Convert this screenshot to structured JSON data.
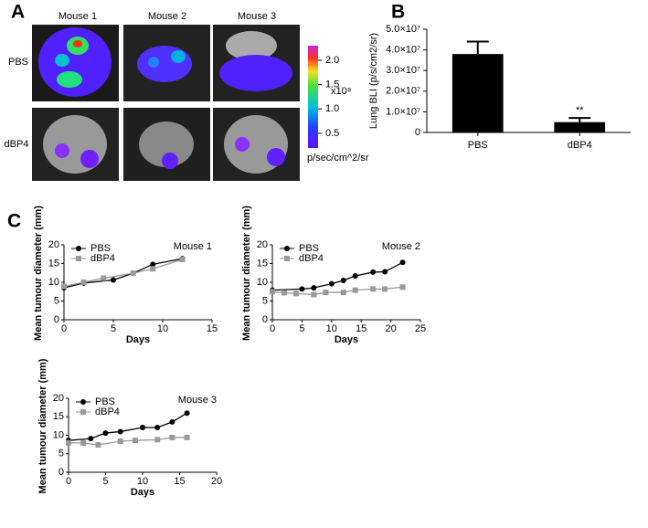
{
  "panel_labels": [
    "A",
    "B",
    "C"
  ],
  "panel_a": {
    "columns": [
      "Mouse 1",
      "Mouse 2",
      "Mouse 3"
    ],
    "rows": [
      "PBS",
      "dBP4"
    ],
    "colorbar": {
      "clim": [
        0.2,
        2.3
      ],
      "ticks": [
        0.5,
        {
          "value": 1,
          "label": "1.0"
        },
        1.5,
        {
          "value": 2,
          "label": "2.0"
        }
      ],
      "scale_label": "x10⁸",
      "unit": "p/sec/cm^2/sr"
    }
  },
  "chart_data": [
    {
      "type": "bar",
      "ylabel": "Lung BLI (p/s/cm2/sr)",
      "categories": [
        "PBS",
        "dBP4"
      ],
      "values": [
        38000000,
        5000000
      ],
      "errors": [
        6000000,
        2000000
      ],
      "color": "#000000",
      "ylim": [
        0,
        50000000
      ],
      "yticks": [
        0,
        {
          "value": 10000000,
          "label": "1.0×10⁷"
        },
        {
          "value": 20000000,
          "label": "2.0×10⁷"
        },
        {
          "value": 30000000,
          "label": "3.0×10⁷"
        },
        {
          "value": 40000000,
          "label": "4.0×10⁷"
        },
        {
          "value": 50000000,
          "label": "5.0×10⁷"
        }
      ],
      "annotation": "**"
    },
    {
      "type": "line",
      "title": "Mouse 1",
      "xlabel": "Days",
      "ylabel": "Mean tumour diameter (mm)",
      "xlim": [
        0,
        15
      ],
      "xticks": [
        0,
        5,
        10,
        15
      ],
      "ylim": [
        0,
        20
      ],
      "yticks": [
        0,
        5,
        10,
        15,
        20
      ],
      "legend": "upper left",
      "series": [
        {
          "name": "PBS",
          "color": "#000000",
          "marker": "circle",
          "x": [
            0,
            2,
            5,
            7,
            9,
            12
          ],
          "values": [
            8.5,
            9.8,
            10.6,
            12.4,
            14.8,
            16.3
          ]
        },
        {
          "name": "dBP4",
          "color": "#999999",
          "marker": "square",
          "x": [
            0,
            2,
            4,
            7,
            9,
            12
          ],
          "values": [
            8.9,
            10,
            11.1,
            12.4,
            13.6,
            16.1
          ]
        }
      ]
    },
    {
      "type": "line",
      "title": "Mouse 2",
      "xlabel": "Days",
      "ylabel": "Mean tumour diameter (mm)",
      "xlim": [
        0,
        25
      ],
      "xticks": [
        0,
        5,
        10,
        15,
        20,
        25
      ],
      "ylim": [
        0,
        20
      ],
      "yticks": [
        0,
        5,
        10,
        15,
        20
      ],
      "legend": "upper left",
      "series": [
        {
          "name": "PBS",
          "color": "#000000",
          "marker": "circle",
          "x": [
            0,
            5,
            7,
            10,
            12,
            14,
            17,
            19,
            22
          ],
          "values": [
            7.9,
            8.2,
            8.5,
            9.6,
            10.5,
            11.7,
            12.7,
            12.8,
            15.3
          ]
        },
        {
          "name": "dBP4",
          "color": "#999999",
          "marker": "square",
          "x": [
            0,
            2,
            4,
            7,
            9,
            12,
            14,
            17,
            19,
            22
          ],
          "values": [
            7.5,
            7.2,
            7.0,
            6.7,
            7.3,
            7.3,
            7.9,
            8.2,
            8.2,
            8.7
          ]
        }
      ]
    },
    {
      "type": "line",
      "title": "Mouse 3",
      "xlabel": "Days",
      "ylabel": "Mean tumour diameter (mm)",
      "xlim": [
        0,
        20
      ],
      "xticks": [
        0,
        5,
        10,
        15,
        20
      ],
      "ylim": [
        0,
        20
      ],
      "yticks": [
        0,
        5,
        10,
        15,
        20
      ],
      "legend": "upper left",
      "series": [
        {
          "name": "PBS",
          "color": "#000000",
          "marker": "circle",
          "x": [
            0,
            3,
            5,
            7,
            10,
            12,
            14,
            16
          ],
          "values": [
            8.6,
            9.1,
            10.6,
            11.0,
            12.1,
            12.1,
            13.6,
            16.0
          ]
        },
        {
          "name": "dBP4",
          "color": "#999999",
          "marker": "square",
          "x": [
            0,
            2,
            4,
            7,
            9,
            12,
            14,
            16
          ],
          "values": [
            8.0,
            7.9,
            7.4,
            8.4,
            8.6,
            8.8,
            9.4,
            9.4
          ]
        }
      ]
    }
  ]
}
